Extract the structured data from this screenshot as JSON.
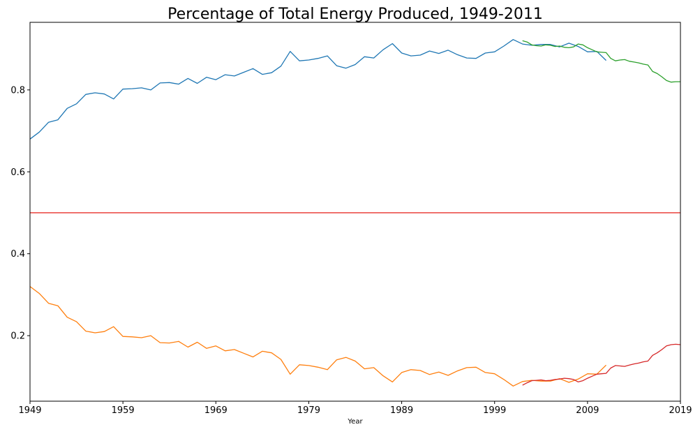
{
  "chart_data": {
    "type": "line",
    "title": "Percentage of Total Energy Produced, 1949-2011",
    "xlabel": "Year",
    "ylabel": "",
    "xlim": [
      1949,
      2019
    ],
    "ylim": [
      0.04,
      0.965
    ],
    "x_ticks": [
      1949,
      1959,
      1969,
      1979,
      1989,
      1999,
      2009,
      2019
    ],
    "y_ticks": [
      0.2,
      0.4,
      0.6,
      0.8
    ],
    "grid": false,
    "legend": "none",
    "reference_line": {
      "y": 0.5,
      "color": "#e8302a"
    },
    "series": [
      {
        "color": "#1f77b4",
        "x": [
          1949,
          1950,
          1951,
          1952,
          1953,
          1954,
          1955,
          1956,
          1957,
          1958,
          1959,
          1960,
          1961,
          1962,
          1963,
          1964,
          1965,
          1966,
          1967,
          1968,
          1969,
          1970,
          1971,
          1972,
          1973,
          1974,
          1975,
          1976,
          1977,
          1978,
          1979,
          1980,
          1981,
          1982,
          1983,
          1984,
          1985,
          1986,
          1987,
          1988,
          1989,
          1990,
          1991,
          1992,
          1993,
          1994,
          1995,
          1996,
          1997,
          1998,
          1999,
          2000,
          2001,
          2002,
          2003,
          2004,
          2005,
          2006,
          2007,
          2008,
          2009,
          2010,
          2011
        ],
        "values": [
          0.68,
          0.697,
          0.721,
          0.727,
          0.755,
          0.766,
          0.789,
          0.793,
          0.79,
          0.778,
          0.802,
          0.803,
          0.805,
          0.8,
          0.817,
          0.818,
          0.814,
          0.828,
          0.816,
          0.831,
          0.825,
          0.837,
          0.834,
          0.843,
          0.852,
          0.838,
          0.842,
          0.858,
          0.894,
          0.871,
          0.873,
          0.877,
          0.883,
          0.859,
          0.853,
          0.862,
          0.881,
          0.878,
          0.898,
          0.913,
          0.89,
          0.883,
          0.885,
          0.895,
          0.889,
          0.897,
          0.886,
          0.878,
          0.877,
          0.89,
          0.893,
          0.907,
          0.923,
          0.912,
          0.909,
          0.911,
          0.911,
          0.905,
          0.914,
          0.906,
          0.893,
          0.894,
          0.872
        ]
      },
      {
        "color": "#ff7f0e",
        "x": [
          1949,
          1950,
          1951,
          1952,
          1953,
          1954,
          1955,
          1956,
          1957,
          1958,
          1959,
          1960,
          1961,
          1962,
          1963,
          1964,
          1965,
          1966,
          1967,
          1968,
          1969,
          1970,
          1971,
          1972,
          1973,
          1974,
          1975,
          1976,
          1977,
          1978,
          1979,
          1980,
          1981,
          1982,
          1983,
          1984,
          1985,
          1986,
          1987,
          1988,
          1989,
          1990,
          1991,
          1992,
          1993,
          1994,
          1995,
          1996,
          1997,
          1998,
          1999,
          2000,
          2001,
          2002,
          2003,
          2004,
          2005,
          2006,
          2007,
          2008,
          2009,
          2010,
          2011
        ],
        "values": [
          0.32,
          0.303,
          0.279,
          0.273,
          0.245,
          0.234,
          0.211,
          0.207,
          0.21,
          0.222,
          0.198,
          0.197,
          0.195,
          0.2,
          0.183,
          0.182,
          0.186,
          0.172,
          0.184,
          0.169,
          0.175,
          0.163,
          0.166,
          0.157,
          0.148,
          0.162,
          0.158,
          0.142,
          0.106,
          0.129,
          0.127,
          0.123,
          0.117,
          0.141,
          0.147,
          0.138,
          0.119,
          0.122,
          0.102,
          0.087,
          0.11,
          0.117,
          0.115,
          0.105,
          0.111,
          0.103,
          0.114,
          0.122,
          0.123,
          0.11,
          0.107,
          0.093,
          0.077,
          0.088,
          0.091,
          0.089,
          0.089,
          0.095,
          0.086,
          0.094,
          0.107,
          0.106,
          0.128
        ]
      },
      {
        "color": "#2ca02c",
        "x": [
          2002,
          2002.5,
          2003,
          2003.5,
          2004,
          2004.5,
          2005,
          2005.5,
          2006,
          2006.5,
          2007,
          2007.5,
          2008,
          2008.5,
          2009,
          2009.5,
          2010,
          2010.5,
          2011,
          2011.5,
          2012,
          2012.5,
          2013,
          2013.5,
          2014,
          2014.5,
          2015,
          2015.5,
          2016,
          2016.5,
          2017,
          2017.5,
          2018,
          2018.5,
          2019
        ],
        "values": [
          0.92,
          0.917,
          0.91,
          0.908,
          0.907,
          0.91,
          0.909,
          0.906,
          0.907,
          0.904,
          0.903,
          0.905,
          0.912,
          0.91,
          0.903,
          0.898,
          0.893,
          0.892,
          0.891,
          0.877,
          0.871,
          0.873,
          0.874,
          0.87,
          0.868,
          0.866,
          0.863,
          0.861,
          0.845,
          0.84,
          0.832,
          0.823,
          0.819,
          0.82,
          0.82
        ]
      },
      {
        "color": "#d62728",
        "x": [
          2002,
          2002.5,
          2003,
          2003.5,
          2004,
          2004.5,
          2005,
          2005.5,
          2006,
          2006.5,
          2007,
          2007.5,
          2008,
          2008.5,
          2009,
          2009.5,
          2010,
          2010.5,
          2011,
          2011.5,
          2012,
          2012.5,
          2013,
          2013.5,
          2014,
          2014.5,
          2015,
          2015.5,
          2016,
          2016.5,
          2017,
          2017.5,
          2018,
          2018.5,
          2019
        ],
        "values": [
          0.079,
          0.085,
          0.09,
          0.091,
          0.092,
          0.09,
          0.091,
          0.093,
          0.094,
          0.096,
          0.095,
          0.093,
          0.087,
          0.09,
          0.096,
          0.101,
          0.106,
          0.107,
          0.108,
          0.121,
          0.127,
          0.126,
          0.125,
          0.128,
          0.131,
          0.133,
          0.136,
          0.138,
          0.152,
          0.158,
          0.166,
          0.175,
          0.178,
          0.179,
          0.178
        ]
      }
    ]
  }
}
